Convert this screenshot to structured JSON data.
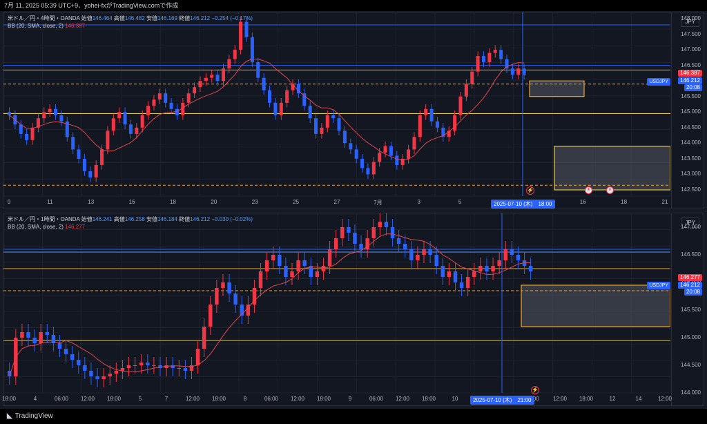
{
  "header": {
    "text": "7月 11, 2025 05:39 UTC+9、yohei-fxがTradingView.comで作成"
  },
  "footer": {
    "brand": "TradingView"
  },
  "colors": {
    "up": "#f23645",
    "down": "#2962ff",
    "ma": "#e0484f",
    "band": "#4caf50",
    "hline_yellow": "#e5c84a",
    "hline_orange": "#f5a623",
    "hline_blue": "#2962ff"
  },
  "panel1": {
    "symbol_line": {
      "name": "米ドル／円・4時間・OANDA",
      "open_lbl": "始値",
      "open": "146.464",
      "high_lbl": "高値",
      "high": "146.482",
      "low_lbl": "安値",
      "low": "146.169",
      "close_lbl": "終値",
      "close": "146.212",
      "change": "−0.254 (−0.17%)"
    },
    "bb_line": {
      "name": "BB (20, SMA, close, 2)",
      "value": "146.387"
    },
    "currency": "JPY",
    "price_ticks": [
      "148.000",
      "147.500",
      "147.000",
      "146.500",
      "146.000",
      "145.500",
      "145.000",
      "144.500",
      "144.000",
      "143.500",
      "143.000",
      "142.500"
    ],
    "label_bb": "146.387",
    "label_price": "146.212",
    "label_time": "20:08",
    "symbol_tag": "USDJPY",
    "x_ticks": [
      "9",
      "11",
      "13",
      "16",
      "18",
      "20",
      "23",
      "25",
      "27",
      "7月",
      "3",
      "5",
      "9",
      "4",
      "16",
      "18",
      "21"
    ],
    "date_tag": "2025-07-10 (木)　18:00",
    "event_icons": [
      "us-flag-icon",
      "us-flag-icon"
    ],
    "chart_data": {
      "type": "candlestick",
      "symbol": "USDJPY",
      "timeframe": "4時間",
      "ylim": [
        142.3,
        148.2
      ],
      "closes": [
        144.9,
        144.6,
        144.3,
        144.1,
        144.5,
        144.8,
        145.0,
        145.1,
        144.9,
        144.7,
        144.2,
        143.8,
        143.5,
        143.1,
        142.9,
        143.3,
        143.8,
        144.4,
        144.8,
        145.0,
        144.6,
        144.3,
        144.5,
        144.9,
        145.2,
        145.4,
        145.6,
        145.3,
        145.1,
        144.9,
        145.3,
        145.6,
        145.8,
        146.0,
        146.1,
        146.2,
        146.0,
        146.4,
        146.7,
        147.0,
        147.9,
        147.4,
        146.6,
        146.1,
        145.7,
        145.3,
        144.9,
        145.3,
        145.7,
        145.9,
        145.6,
        145.2,
        144.8,
        144.3,
        144.5,
        144.9,
        144.8,
        144.4,
        144.0,
        143.8,
        143.5,
        143.2,
        143.0,
        143.4,
        143.7,
        143.9,
        143.6,
        143.3,
        143.5,
        143.8,
        144.2,
        144.9,
        145.1,
        144.7,
        144.5,
        144.2,
        144.4,
        144.9,
        145.5,
        145.9,
        146.3,
        146.8,
        146.6,
        146.9,
        147.0,
        146.7,
        146.4,
        146.2,
        146.4,
        146.2
      ],
      "annotations": {
        "hlines": [
          147.8,
          146.5,
          146.35,
          145.9,
          144.95,
          142.65
        ],
        "boxes": [
          {
            "from": 146.0,
            "to": 145.5
          },
          {
            "from": 143.9,
            "to": 142.5
          }
        ]
      }
    }
  },
  "panel2": {
    "symbol_line": {
      "name": "米ドル／円・1時間・OANDA",
      "open_lbl": "始値",
      "open": "146.241",
      "high_lbl": "高値",
      "high": "146.258",
      "low_lbl": "安値",
      "low": "146.184",
      "close_lbl": "終値",
      "close": "146.212",
      "change": "−0.030 (−0.02%)"
    },
    "bb_line": {
      "name": "BB (20, SMA, close, 2)",
      "value": "146.277"
    },
    "currency": "JPY",
    "price_ticks": [
      "147.000",
      "146.500",
      "146.000",
      "145.500",
      "145.000",
      "144.500",
      "144.000"
    ],
    "label_bb": "146.277",
    "label_price": "146.212",
    "label_time": "20:08",
    "symbol_tag": "USDJPY",
    "x_ticks": [
      "18:00",
      "4",
      "06:00",
      "12:00",
      "18:00",
      "5",
      "7",
      "12:00",
      "18:00",
      "8",
      "06:00",
      "12:00",
      "18:00",
      "9",
      "06:00",
      "12:00",
      "18:00",
      "10",
      "06:00",
      "12:00",
      "5:00",
      "12:00",
      "18:00",
      "12",
      "14",
      "12:00"
    ],
    "date_tag": "2025-07-10 (木)　21:00",
    "chart_data": {
      "type": "candlestick",
      "symbol": "USDJPY",
      "timeframe": "1時間",
      "ylim": [
        144.0,
        147.25
      ],
      "closes": [
        144.3,
        145.0,
        145.1,
        145.0,
        144.9,
        145.1,
        145.05,
        144.9,
        144.8,
        144.7,
        144.6,
        144.5,
        144.4,
        144.3,
        144.25,
        144.3,
        144.35,
        144.4,
        144.45,
        144.5,
        144.5,
        144.55,
        144.5,
        144.5,
        144.45,
        144.5,
        144.45,
        144.45,
        144.4,
        144.5,
        144.8,
        145.2,
        145.6,
        145.9,
        146.0,
        145.8,
        145.6,
        145.4,
        145.6,
        145.9,
        146.2,
        146.4,
        146.5,
        146.3,
        146.1,
        146.2,
        146.4,
        146.3,
        146.1,
        146.2,
        146.3,
        146.6,
        146.8,
        147.0,
        146.9,
        146.7,
        146.6,
        146.8,
        147.0,
        147.1,
        147.0,
        146.8,
        146.7,
        146.6,
        146.4,
        146.5,
        146.6,
        146.5,
        146.3,
        146.1,
        146.2,
        146.0,
        145.9,
        146.1,
        146.2,
        146.3,
        146.2,
        146.3,
        146.4,
        146.6,
        146.5,
        146.4,
        146.3,
        146.2
      ],
      "annotations": {
        "hlines": [
          146.6,
          146.55,
          146.25,
          145.85,
          144.95
        ],
        "boxes": [
          {
            "from": 145.95,
            "to": 145.2
          }
        ]
      }
    }
  }
}
